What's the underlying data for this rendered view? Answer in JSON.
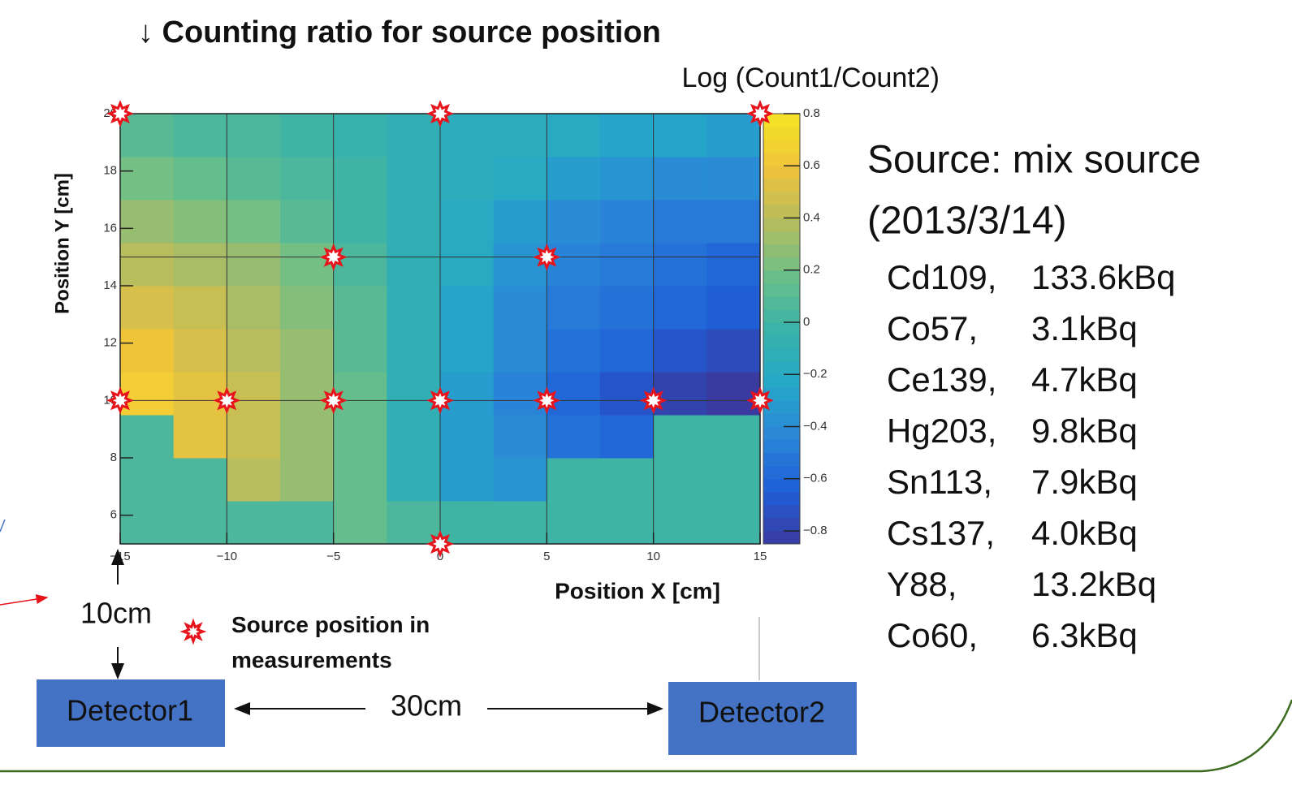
{
  "chart_data": {
    "type": "heatmap",
    "title": "↓ Counting ratio for source position",
    "colorbar_title": "Log (Count1/Count2)",
    "xlabel": "Position X [cm]",
    "ylabel": "Position Y [cm]",
    "xlim": [
      -15,
      15
    ],
    "ylim": [
      5,
      20
    ],
    "zlim": [
      -0.85,
      0.8
    ],
    "xticks": [
      {
        "value": -15,
        "label": "−15"
      },
      {
        "value": -10,
        "label": "−10"
      },
      {
        "value": -5,
        "label": "−5"
      },
      0,
      5,
      10,
      15
    ],
    "yticks": [
      6,
      8,
      10,
      12,
      14,
      16,
      18,
      20
    ],
    "zticks": [
      0.8,
      0.6,
      0.4,
      0.2,
      0,
      {
        "value": -0.2,
        "label": "−0.2"
      },
      {
        "value": -0.4,
        "label": "−0.4"
      },
      {
        "value": -0.6,
        "label": "−0.6"
      },
      {
        "value": -0.8,
        "label": "−0.8"
      }
    ],
    "xgrid": [
      -10,
      -5,
      0,
      5,
      10
    ],
    "ygrid": [
      10,
      15
    ],
    "colorscale": [
      "#3a3aa0",
      "#1f5fd8",
      "#2a86d8",
      "#25a8c8",
      "#3ab3a8",
      "#6cbf88",
      "#b6bd5f",
      "#f0c33a",
      "#f6e626"
    ],
    "xbins": [
      -15,
      -12.5,
      -10,
      -7.5,
      -5,
      -2.5,
      0,
      2.5,
      5,
      7.5,
      10,
      12.5,
      15
    ],
    "ybins": [
      5,
      6.5,
      8,
      9.5,
      11,
      12.5,
      14,
      15.5,
      17,
      18.5,
      20
    ],
    "z": [
      [
        0.05,
        0.05,
        0.05,
        0.05,
        0.15,
        0.05,
        0.0,
        0.0,
        0.0,
        0.0,
        0.0,
        0.0
      ],
      [
        0.05,
        0.05,
        0.4,
        0.3,
        0.15,
        -0.1,
        -0.3,
        -0.35,
        0.0,
        0.0,
        0.0,
        0.0
      ],
      [
        0.05,
        0.55,
        0.45,
        0.3,
        0.15,
        -0.1,
        -0.3,
        -0.4,
        -0.55,
        -0.6,
        0.0,
        0.0
      ],
      [
        0.65,
        0.55,
        0.45,
        0.3,
        0.15,
        -0.1,
        -0.3,
        -0.45,
        -0.6,
        -0.7,
        -0.8,
        -0.85
      ],
      [
        0.6,
        0.5,
        0.4,
        0.3,
        0.1,
        -0.1,
        -0.25,
        -0.4,
        -0.55,
        -0.6,
        -0.7,
        -0.75
      ],
      [
        0.5,
        0.45,
        0.35,
        0.25,
        0.1,
        -0.1,
        -0.25,
        -0.4,
        -0.5,
        -0.55,
        -0.6,
        -0.65
      ],
      [
        0.4,
        0.35,
        0.3,
        0.2,
        0.05,
        -0.1,
        -0.2,
        -0.35,
        -0.45,
        -0.5,
        -0.55,
        -0.6
      ],
      [
        0.3,
        0.25,
        0.2,
        0.1,
        0.0,
        -0.1,
        -0.2,
        -0.3,
        -0.4,
        -0.45,
        -0.5,
        -0.5
      ],
      [
        0.2,
        0.15,
        0.1,
        0.05,
        0.0,
        -0.1,
        -0.15,
        -0.2,
        -0.3,
        -0.35,
        -0.4,
        -0.4
      ],
      [
        0.1,
        0.05,
        0.05,
        0.0,
        -0.05,
        -0.1,
        -0.15,
        -0.15,
        -0.2,
        -0.25,
        -0.25,
        -0.3
      ]
    ],
    "sources": {
      "name": "Source position in measurements",
      "color": "#e8141c",
      "x": [
        -15,
        0,
        15,
        -5,
        5,
        -15,
        -10,
        -5,
        0,
        5,
        10,
        15,
        0
      ],
      "y": [
        20,
        20,
        20,
        15,
        15,
        10,
        10,
        10,
        10,
        10,
        10,
        10,
        5
      ]
    }
  },
  "source_info": {
    "title": "Source: mix source",
    "date": "(2013/3/14)",
    "items": [
      {
        "name": "Cd109,",
        "activity": "133.6kBq"
      },
      {
        "name": "Co57,",
        "activity": "3.1kBq"
      },
      {
        "name": "Ce139,",
        "activity": "4.7kBq"
      },
      {
        "name": "Hg203,",
        "activity": "9.8kBq"
      },
      {
        "name": "Sn113,",
        "activity": "7.9kBq"
      },
      {
        "name": "Cs137,",
        "activity": "4.0kBq"
      },
      {
        "name": "Y88,",
        "activity": "13.2kBq"
      },
      {
        "name": "Co60,",
        "activity": "6.3kBq"
      }
    ]
  },
  "setup": {
    "detector1": "Detector1",
    "detector2": "Detector2",
    "gap": "10cm",
    "distance": "30cm"
  }
}
